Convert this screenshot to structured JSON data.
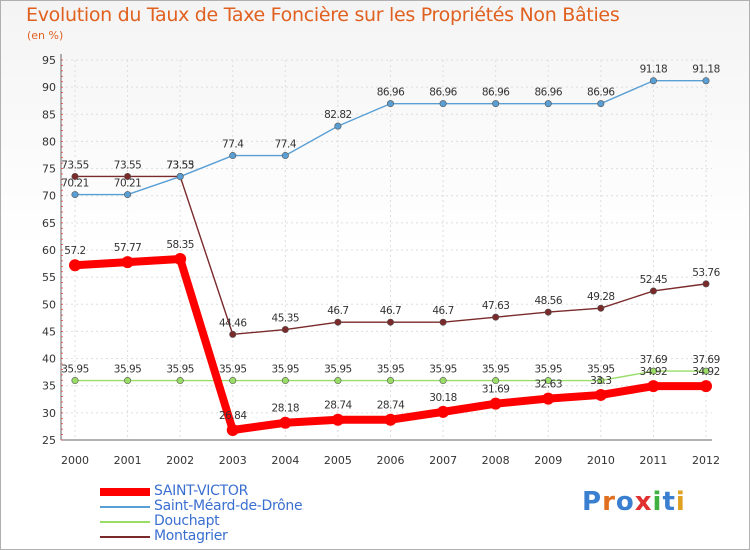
{
  "title": "Evolution du Taux de Taxe Foncière sur les Propriétés Non Bâties",
  "subtitle": "(en %)",
  "logo": {
    "letters": [
      "P",
      "r",
      "o",
      "x",
      "i",
      "t",
      "i"
    ],
    "colors": [
      "#3a7fd0",
      "#e07020",
      "#3a7fd0",
      "#e03030",
      "#40b040",
      "#3a7fd0",
      "#e0a020"
    ]
  },
  "chart_data": {
    "type": "line",
    "title": "Evolution du Taux de Taxe Foncière sur les Propriétés Non Bâties",
    "ylabel": "(en %)",
    "xlabel": "",
    "ylim": [
      25,
      95
    ],
    "yticks": [
      25,
      30,
      35,
      40,
      45,
      50,
      55,
      60,
      65,
      70,
      75,
      80,
      85,
      90,
      95
    ],
    "categories": [
      "2000",
      "2001",
      "2002",
      "2003",
      "2004",
      "2005",
      "2006",
      "2007",
      "2008",
      "2009",
      "2010",
      "2011",
      "2012"
    ],
    "grid": true,
    "legend": "bottom-left",
    "series": [
      {
        "name": "SAINT-VICTOR",
        "color": "#ff0000",
        "values": [
          57.2,
          57.77,
          58.35,
          26.84,
          28.18,
          28.74,
          28.74,
          30.18,
          31.69,
          32.63,
          33.3,
          34.92,
          34.92
        ],
        "labels": [
          "57.2",
          "57.77",
          "58.35",
          "26.84",
          "28.18",
          "28.74",
          "28.74",
          "30.18",
          "31.69",
          "32.63",
          "33.3",
          "34.92",
          "34.92"
        ]
      },
      {
        "name": "Saint-Méard-de-Drône",
        "color": "#5a9fd4",
        "values": [
          70.21,
          70.21,
          73.53,
          77.4,
          77.4,
          82.82,
          86.96,
          86.96,
          86.96,
          86.96,
          86.96,
          91.18,
          91.18
        ],
        "labels": [
          "70.21",
          "70.21",
          "73.53",
          "77.4",
          "77.4",
          "82.82",
          "86.96",
          "86.96",
          "86.96",
          "86.96",
          "86.96",
          "91.18",
          "91.18"
        ]
      },
      {
        "name": "Douchapt",
        "color": "#99dd66",
        "values": [
          35.95,
          35.95,
          35.95,
          35.95,
          35.95,
          35.95,
          35.95,
          35.95,
          35.95,
          35.95,
          35.95,
          37.69,
          37.69
        ],
        "labels": [
          "35.95",
          "35.95",
          "35.95",
          "35.95",
          "35.95",
          "35.95",
          "35.95",
          "35.95",
          "35.95",
          "35.95",
          "35.95",
          "37.69",
          "37.69"
        ]
      },
      {
        "name": "Montagrier",
        "color": "#7a2a2a",
        "values": [
          73.55,
          73.55,
          73.55,
          44.46,
          45.35,
          46.7,
          46.7,
          46.7,
          47.63,
          48.56,
          49.28,
          52.45,
          53.76
        ],
        "labels": [
          "73.55",
          "73.55",
          "73.55",
          "44.46",
          "45.35",
          "46.7",
          "46.7",
          "46.7",
          "47.63",
          "48.56",
          "49.28",
          "52.45",
          "53.76"
        ]
      }
    ]
  }
}
